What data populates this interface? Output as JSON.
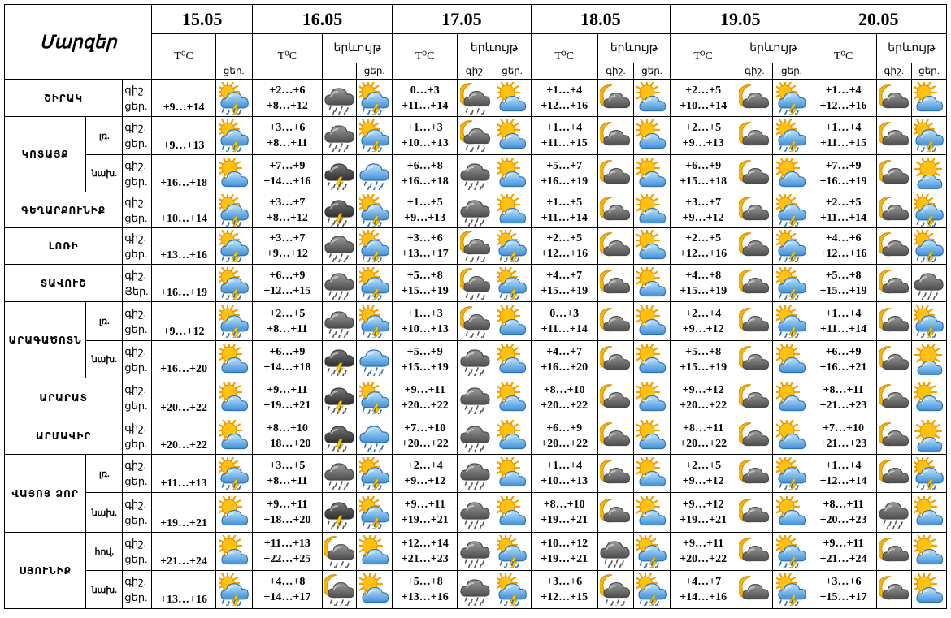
{
  "title": "Մարզեր",
  "dates": [
    "15.05",
    "16.05",
    "17.05",
    "18.05",
    "19.05",
    "20.05"
  ],
  "labels": {
    "temp": "T⁰C",
    "phenomenon": "երևույթ",
    "night": "գիշ.",
    "day": "ցեր.",
    "day_alt": "Յեր."
  },
  "rows": [
    {
      "region": "ՇԻՐԱԿ",
      "zone": "",
      "day_label": "ցեր.",
      "t15": "+9…+14",
      "ic15": "storm-sun",
      "days": [
        {
          "n": "+2…+6",
          "d": "+8…+12",
          "in": "rain-cloud",
          "id": "storm-sun"
        },
        {
          "n": "0…+3",
          "d": "+11…+14",
          "in": "moon-rain",
          "id": "sun-cloud"
        },
        {
          "n": "+1…+4",
          "d": "+12…+16",
          "in": "moon-cloud",
          "id": "sun-cloud"
        },
        {
          "n": "+2…+5",
          "d": "+10…+14",
          "in": "moon-cloud",
          "id": "storm-sun"
        },
        {
          "n": "+1…+4",
          "d": "+12…+16",
          "in": "moon-cloud",
          "id": "sun-cloud"
        }
      ]
    },
    {
      "region": "ԿՈՏԱՅՔ",
      "zone": "լռ.",
      "day_label": "ցեր.",
      "t15": "+9…+13",
      "ic15": "storm-sun",
      "days": [
        {
          "n": "+3…+6",
          "d": "+8…+11",
          "in": "rain-cloud",
          "id": "storm-sun"
        },
        {
          "n": "+1…+3",
          "d": "+10…+13",
          "in": "moon-rain",
          "id": "sun-cloud"
        },
        {
          "n": "+1…+4",
          "d": "+11…+15",
          "in": "moon-cloud",
          "id": "sun-cloud"
        },
        {
          "n": "+2…+5",
          "d": "+9…+13",
          "in": "moon-cloud",
          "id": "storm-sun"
        },
        {
          "n": "+1…+4",
          "d": "+11…+15",
          "in": "moon-cloud",
          "id": "storm-sun"
        }
      ]
    },
    {
      "region": "",
      "zone": "նախ.",
      "day_label": "ցեր.",
      "t15": "+16…+18",
      "ic15": "sun-cloud",
      "days": [
        {
          "n": "+7…+9",
          "d": "+14…+16",
          "in": "storm-cloud",
          "id": "rain-blue"
        },
        {
          "n": "+6…+8",
          "d": "+16…+18",
          "in": "rain-cloud",
          "id": "sun-cloud"
        },
        {
          "n": "+5…+7",
          "d": "+16…+19",
          "in": "moon-cloud",
          "id": "sun-cloud"
        },
        {
          "n": "+6…+9",
          "d": "+15…+18",
          "in": "moon-cloud",
          "id": "sun-cloud"
        },
        {
          "n": "+7…+9",
          "d": "+16…+19",
          "in": "moon-cloud",
          "id": "sun"
        }
      ]
    },
    {
      "region": "ԳԵՂԱՐՔՈՒՆԻՔ",
      "zone": "",
      "day_label": "ցեր.",
      "t15": "+10…+14",
      "ic15": "storm-sun",
      "days": [
        {
          "n": "+3…+7",
          "d": "+8…+12",
          "in": "storm-cloud",
          "id": "storm-sun"
        },
        {
          "n": "+1…+5",
          "d": "+9…+13",
          "in": "rain-cloud",
          "id": "sun-cloud"
        },
        {
          "n": "+1…+5",
          "d": "+11…+14",
          "in": "moon-cloud",
          "id": "sun-cloud"
        },
        {
          "n": "+3…+7",
          "d": "+9…+12",
          "in": "moon-cloud",
          "id": "storm-sun"
        },
        {
          "n": "+2…+5",
          "d": "+11…+14",
          "in": "moon-cloud",
          "id": "storm-sun"
        }
      ]
    },
    {
      "region": "ԼՈՌԻ",
      "zone": "",
      "day_label": "ցեր.",
      "t15": "+13…+16",
      "ic15": "storm-sun",
      "days": [
        {
          "n": "+3…+7",
          "d": "+9…+12",
          "in": "rain-cloud",
          "id": "storm-sun"
        },
        {
          "n": "+3…+6",
          "d": "+13…+17",
          "in": "moon-rain",
          "id": "storm-sun"
        },
        {
          "n": "+2…+5",
          "d": "+12…+16",
          "in": "moon-cloud",
          "id": "sun-cloud"
        },
        {
          "n": "+2…+5",
          "d": "+12…+16",
          "in": "moon-cloud",
          "id": "storm-sun"
        },
        {
          "n": "+4…+6",
          "d": "+12…+16",
          "in": "moon-cloud",
          "id": "storm-sun"
        }
      ]
    },
    {
      "region": "ՏԱՎՈՒՇ",
      "zone": "",
      "day_label": "Յեր.",
      "t15": "+16…+19",
      "ic15": "storm-sun",
      "days": [
        {
          "n": "+6…+9",
          "d": "+12…+15",
          "in": "rain-cloud",
          "id": "storm-sun"
        },
        {
          "n": "+5…+8",
          "d": "+15…+19",
          "in": "moon-rain",
          "id": "storm-sun"
        },
        {
          "n": "+4…+7",
          "d": "+15…+19",
          "in": "moon-cloud",
          "id": "sun-cloud"
        },
        {
          "n": "+4…+8",
          "d": "+15…+19",
          "in": "moon-cloud",
          "id": "storm-sun"
        },
        {
          "n": "+5…+8",
          "d": "+15…+19",
          "in": "moon-cloud",
          "id": "rain-cloud"
        }
      ]
    },
    {
      "region": "ԱՐԱԳԱԾՈՏՆ",
      "zone": "լռ.",
      "day_label": "ցեր.",
      "t15": "+9…+12",
      "ic15": "storm-sun",
      "days": [
        {
          "n": "+2…+5",
          "d": "+8…+11",
          "in": "rain-cloud",
          "id": "storm-sun"
        },
        {
          "n": "+1…+3",
          "d": "+10…+13",
          "in": "moon-rain",
          "id": "sun-cloud"
        },
        {
          "n": "0…+3",
          "d": "+11…+14",
          "in": "moon-cloud",
          "id": "sun-cloud"
        },
        {
          "n": "+2…+4",
          "d": "+9…+12",
          "in": "moon-cloud",
          "id": "storm-sun"
        },
        {
          "n": "+1…+4",
          "d": "+11…+14",
          "in": "moon-cloud",
          "id": "storm-sun"
        }
      ]
    },
    {
      "region": "",
      "zone": "նախ.",
      "day_label": "ցեր.",
      "t15": "+16…+20",
      "ic15": "sun-cloud",
      "days": [
        {
          "n": "+6…+9",
          "d": "+14…+18",
          "in": "storm-cloud",
          "id": "rain-blue"
        },
        {
          "n": "+5…+9",
          "d": "+15…+19",
          "in": "rain-cloud",
          "id": "sun-cloud"
        },
        {
          "n": "+4…+7",
          "d": "+16…+20",
          "in": "moon-cloud",
          "id": "sun-cloud"
        },
        {
          "n": "+5…+8",
          "d": "+15…+19",
          "in": "moon-cloud",
          "id": "sun-cloud"
        },
        {
          "n": "+6…+9",
          "d": "+16…+21",
          "in": "moon-cloud",
          "id": "sun"
        }
      ]
    },
    {
      "region": "ԱՐԱՐԱՏ",
      "zone": "",
      "day_label": "ցեր.",
      "t15": "+20…+22",
      "ic15": "sun-cloud",
      "days": [
        {
          "n": "+9…+11",
          "d": "+19…+21",
          "in": "storm-cloud",
          "id": "storm-sun"
        },
        {
          "n": "+9…+11",
          "d": "+20…+22",
          "in": "rain-cloud",
          "id": "sun-cloud"
        },
        {
          "n": "+8…+10",
          "d": "+20…+22",
          "in": "moon-cloud",
          "id": "sun-cloud"
        },
        {
          "n": "+9…+12",
          "d": "+20…+22",
          "in": "moon-cloud",
          "id": "sun-cloud"
        },
        {
          "n": "+8…+11",
          "d": "+21…+23",
          "in": "moon-cloud",
          "id": "sun-cloud"
        }
      ]
    },
    {
      "region": "ԱՐՄԱՎԻՐ",
      "zone": "",
      "day_label": "ցեր.",
      "t15": "+20…+22",
      "ic15": "sun-cloud",
      "days": [
        {
          "n": "+8…+10",
          "d": "+18…+20",
          "in": "storm-cloud",
          "id": "rain-blue"
        },
        {
          "n": "+7…+10",
          "d": "+20…+22",
          "in": "rain-cloud",
          "id": "sun-cloud"
        },
        {
          "n": "+6…+9",
          "d": "+20…+22",
          "in": "moon-cloud",
          "id": "sun-cloud"
        },
        {
          "n": "+8…+11",
          "d": "+20…+22",
          "in": "moon-cloud",
          "id": "sun-cloud"
        },
        {
          "n": "+7…+10",
          "d": "+21…+23",
          "in": "moon-cloud",
          "id": "sun"
        }
      ]
    },
    {
      "region": "ՎԱՅՈՑ ՁՈՐ",
      "zone": "լռ.",
      "day_label": "ցեր.",
      "t15": "+11…+13",
      "ic15": "storm-sun",
      "days": [
        {
          "n": "+3…+5",
          "d": "+8…+11",
          "in": "rain-cloud",
          "id": "storm-sun"
        },
        {
          "n": "+2…+4",
          "d": "+9…+12",
          "in": "rain-cloud",
          "id": "sun-cloud"
        },
        {
          "n": "+1…+4",
          "d": "+10…+13",
          "in": "moon-cloud",
          "id": "sun-cloud"
        },
        {
          "n": "+2…+5",
          "d": "+9…+12",
          "in": "moon-cloud",
          "id": "storm-sun"
        },
        {
          "n": "+1…+4",
          "d": "+12…+14",
          "in": "moon-cloud",
          "id": "storm-sun"
        }
      ]
    },
    {
      "region": "",
      "zone": "նախ.",
      "day_label": "ցեր.",
      "t15": "+19…+21",
      "ic15": "sun-cloud",
      "days": [
        {
          "n": "+9…+11",
          "d": "+18…+20",
          "in": "storm-cloud",
          "id": "storm-sun"
        },
        {
          "n": "+9…+11",
          "d": "+19…+21",
          "in": "rain-cloud",
          "id": "sun-cloud"
        },
        {
          "n": "+8…+10",
          "d": "+19…+21",
          "in": "moon-cloud",
          "id": "sun-cloud"
        },
        {
          "n": "+9…+12",
          "d": "+19…+21",
          "in": "moon-cloud",
          "id": "sun-cloud"
        },
        {
          "n": "+8…+11",
          "d": "+20…+23",
          "in": "rain-cloud",
          "id": "sun-cloud"
        }
      ]
    },
    {
      "region": "ՍՅՈՒՆԻՔ",
      "zone": "հով.",
      "day_label": "ցեր.",
      "t15": "+21…+24",
      "ic15": "sun-cloud",
      "days": [
        {
          "n": "+11…+13",
          "d": "+22…+25",
          "in": "moon-rain",
          "id": "sun-cloud"
        },
        {
          "n": "+12…+14",
          "d": "+21…+23",
          "in": "rain-cloud",
          "id": "storm-sun"
        },
        {
          "n": "+10…+12",
          "d": "+19…+21",
          "in": "rain-cloud",
          "id": "storm-sun"
        },
        {
          "n": "+9…+11",
          "d": "+20…+22",
          "in": "moon-cloud",
          "id": "storm-sun"
        },
        {
          "n": "+9…+11",
          "d": "+21…+24",
          "in": "moon-cloud",
          "id": "sun-cloud"
        }
      ]
    },
    {
      "region": "",
      "zone": "նախ.",
      "day_label": "ցեր.",
      "t15": "+13…+16",
      "ic15": "storm-sun",
      "days": [
        {
          "n": "+4…+8",
          "d": "+14…+17",
          "in": "moon-rain",
          "id": "sun-cloud"
        },
        {
          "n": "+5…+8",
          "d": "+13…+16",
          "in": "rain-cloud",
          "id": "storm-sun"
        },
        {
          "n": "+3…+6",
          "d": "+12…+15",
          "in": "moon-rain",
          "id": "storm-sun"
        },
        {
          "n": "+4…+7",
          "d": "+14…+16",
          "in": "moon-cloud",
          "id": "storm-sun"
        },
        {
          "n": "+3…+6",
          "d": "+15…+17",
          "in": "moon-cloud",
          "id": "sun-cloud"
        }
      ]
    }
  ]
}
